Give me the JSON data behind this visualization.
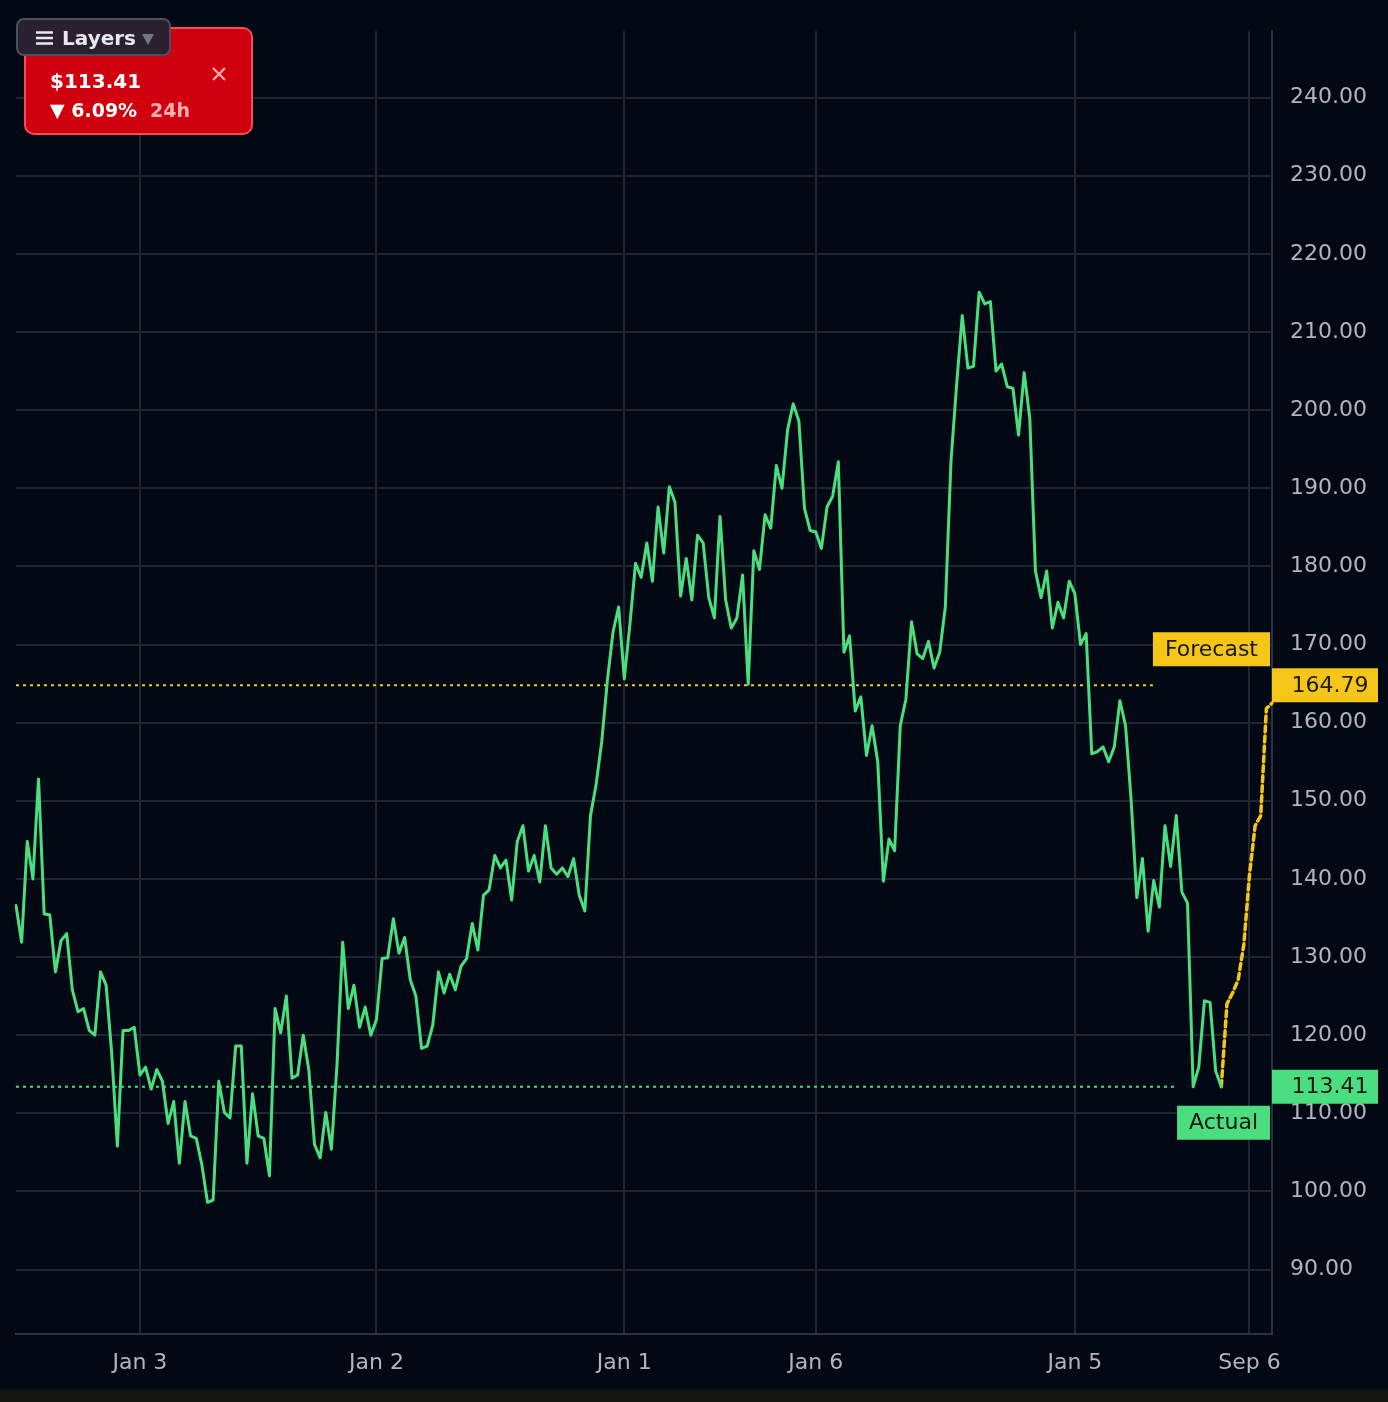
{
  "chart_data": {
    "type": "line",
    "ylim": [
      81.75,
      248.5
    ],
    "categories": [
      null,
      null,
      null,
      null,
      null,
      null,
      null,
      null,
      null,
      null,
      null,
      null,
      null,
      null,
      null,
      null,
      null,
      null,
      null,
      null,
      null,
      null,
      "Jan 3",
      null,
      null,
      null,
      null,
      null,
      null,
      null,
      null,
      null,
      null,
      null,
      null,
      null,
      null,
      null,
      null,
      null,
      null,
      null,
      null,
      null,
      null,
      null,
      null,
      null,
      null,
      null,
      null,
      null,
      null,
      null,
      null,
      null,
      null,
      null,
      null,
      null,
      null,
      null,
      null,
      null,
      "Jan 2",
      null,
      null,
      null,
      null,
      null,
      null,
      null,
      null,
      null,
      null,
      null,
      null,
      null,
      null,
      null,
      null,
      null,
      null,
      null,
      null,
      null,
      null,
      null,
      null,
      null,
      null,
      null,
      null,
      null,
      null,
      null,
      null,
      null,
      null,
      null,
      null,
      null,
      null,
      null,
      null,
      null,
      null,
      null,
      "Jan 1",
      null,
      null,
      null,
      null,
      null,
      null,
      null,
      null,
      null,
      null,
      null,
      null,
      null,
      null,
      null,
      null,
      null,
      null,
      null,
      null,
      null,
      null,
      null,
      null,
      null,
      null,
      null,
      null,
      null,
      null,
      null,
      null,
      null,
      "Jan 6",
      null,
      null,
      null,
      null,
      null,
      null,
      null,
      null,
      null,
      null,
      null,
      null,
      null,
      null,
      null,
      null,
      null,
      null,
      null,
      null,
      null,
      null,
      null,
      null,
      null,
      null,
      null,
      null,
      null,
      null,
      null,
      null,
      null,
      null,
      null,
      null,
      null,
      null,
      null,
      null,
      null,
      null,
      null,
      null,
      null,
      "Jan 5",
      null,
      null,
      null,
      null,
      null,
      null,
      null,
      null,
      null,
      null,
      null,
      null,
      null,
      null,
      null,
      null,
      null,
      null,
      null,
      null,
      null,
      null,
      null,
      null,
      null,
      null,
      null,
      null,
      null,
      null,
      "Sep 6",
      null,
      null,
      null,
      null
    ],
    "yticks": [
      {
        "value": 90,
        "label": "90.00"
      },
      {
        "value": 100,
        "label": "100.00"
      },
      {
        "value": 110,
        "label": "110.00"
      },
      {
        "value": 120,
        "label": "120.00"
      },
      {
        "value": 130,
        "label": "130.00"
      },
      {
        "value": 140,
        "label": "140.00"
      },
      {
        "value": 150,
        "label": "150.00"
      },
      {
        "value": 160,
        "label": "160.00"
      },
      {
        "value": 170,
        "label": "170.00"
      },
      {
        "value": 180,
        "label": "180.00"
      },
      {
        "value": 190,
        "label": "190.00"
      },
      {
        "value": 200,
        "label": "200.00"
      },
      {
        "value": 210,
        "label": "210.00"
      },
      {
        "value": 220,
        "label": "220.00"
      },
      {
        "value": 230,
        "label": "230.00"
      },
      {
        "value": 240,
        "label": "240.00"
      }
    ],
    "grid": true,
    "legend": false,
    "marker": "none",
    "series": [
      {
        "color": "#4ade80",
        "line_style": "solid",
        "values": [
          136.6,
          131.9,
          144.8,
          140,
          152.8,
          135.5,
          135.4,
          128.1,
          132.1,
          133,
          125.8,
          123,
          123.4,
          120.6,
          120,
          128.1,
          126.4,
          117.6,
          105.8,
          120.6,
          120.6,
          121,
          114.9,
          115.9,
          113.1,
          115.6,
          114.1,
          108.7,
          111.5,
          103.6,
          111.5,
          107.1,
          106.8,
          103.4,
          98.6,
          98.9,
          114.1,
          110.1,
          109.4,
          118.6,
          118.6,
          103.6,
          112.5,
          107.1,
          106.8,
          102,
          123.4,
          120.3,
          125,
          114.5,
          114.9,
          120,
          115.5,
          106,
          104.3,
          110.1,
          105.4,
          116.3,
          131.9,
          123.4,
          126.4,
          121,
          123.6,
          120,
          122,
          129.8,
          129.9,
          134.9,
          130.5,
          132.5,
          127.1,
          125,
          118.3,
          118.6,
          121.3,
          128.1,
          125.4,
          127.8,
          125.8,
          128.8,
          129.8,
          134.3,
          130.9,
          137.9,
          138.6,
          143,
          141.4,
          142.4,
          137.3,
          144.8,
          146.8,
          141,
          143,
          139.6,
          146.8,
          141.4,
          140.6,
          141.4,
          140.3,
          142.6,
          137.9,
          135.9,
          148.1,
          152.1,
          157.6,
          165.4,
          171.6,
          174.8,
          165.6,
          172.6,
          180.4,
          178.6,
          183,
          178.1,
          187.6,
          181.7,
          190.2,
          188.2,
          176.2,
          181,
          175.7,
          184,
          183,
          176,
          173.4,
          186.4,
          175.7,
          172.1,
          173.4,
          178.9,
          164.9,
          182,
          179.6,
          186.6,
          184.9,
          192.9,
          190,
          197.5,
          200.8,
          198.6,
          187.4,
          184.6,
          184.4,
          182.3,
          187.6,
          189,
          193.4,
          169,
          171.1,
          161.5,
          163.3,
          155.8,
          159.6,
          155,
          139.7,
          145.1,
          143.6,
          159.6,
          163,
          172.9,
          168.8,
          168.2,
          170.4,
          167,
          169,
          174.8,
          193.4,
          203.2,
          212.1,
          205.4,
          205.6,
          215.1,
          213.6,
          213.9,
          205,
          205.9,
          203,
          202.8,
          196.8,
          204.8,
          198.9,
          179.4,
          176,
          179.4,
          172.1,
          175.4,
          173.4,
          178.1,
          176.5,
          170,
          171.4,
          156,
          156.3,
          156.9,
          155,
          156.9,
          162.8,
          159.6,
          150,
          137.6,
          142.6,
          133.3,
          139.8,
          136.4,
          146.8,
          141.6,
          148.1,
          138.3,
          136.9,
          113.4,
          115.9,
          124.4,
          124.2,
          115.4,
          113.41,
          null,
          null,
          null,
          null,
          null,
          null,
          null,
          null,
          null
        ]
      },
      {
        "color": "#f5c518",
        "line_style": "dashed",
        "values": [
          null,
          null,
          null,
          null,
          null,
          null,
          null,
          null,
          null,
          null,
          null,
          null,
          null,
          null,
          null,
          null,
          null,
          null,
          null,
          null,
          null,
          null,
          null,
          null,
          null,
          null,
          null,
          null,
          null,
          null,
          null,
          null,
          null,
          null,
          null,
          null,
          null,
          null,
          null,
          null,
          null,
          null,
          null,
          null,
          null,
          null,
          null,
          null,
          null,
          null,
          null,
          null,
          null,
          null,
          null,
          null,
          null,
          null,
          null,
          null,
          null,
          null,
          null,
          null,
          null,
          null,
          null,
          null,
          null,
          null,
          null,
          null,
          null,
          null,
          null,
          null,
          null,
          null,
          null,
          null,
          null,
          null,
          null,
          null,
          null,
          null,
          null,
          null,
          null,
          null,
          null,
          null,
          null,
          null,
          null,
          null,
          null,
          null,
          null,
          null,
          null,
          null,
          null,
          null,
          null,
          null,
          null,
          null,
          null,
          null,
          null,
          null,
          null,
          null,
          null,
          null,
          null,
          null,
          null,
          null,
          null,
          null,
          null,
          null,
          null,
          null,
          null,
          null,
          null,
          null,
          null,
          null,
          null,
          null,
          null,
          null,
          null,
          null,
          null,
          null,
          null,
          null,
          null,
          null,
          null,
          null,
          null,
          null,
          null,
          null,
          null,
          null,
          null,
          null,
          null,
          null,
          null,
          null,
          null,
          null,
          null,
          null,
          null,
          null,
          null,
          null,
          null,
          null,
          null,
          null,
          null,
          null,
          null,
          null,
          null,
          null,
          null,
          null,
          null,
          null,
          null,
          null,
          null,
          null,
          null,
          null,
          null,
          null,
          null,
          null,
          null,
          null,
          null,
          null,
          null,
          null,
          null,
          null,
          null,
          null,
          null,
          null,
          null,
          null,
          null,
          null,
          null,
          null,
          null,
          null,
          null,
          null,
          null,
          null,
          113.41,
          124,
          125.4,
          127.1,
          131.6,
          140.5,
          146.8,
          148.1,
          161.8,
          162.5
        ]
      }
    ],
    "ref_lines": [
      {
        "axis": "y",
        "value": 164.79,
        "label": "Forecast",
        "color": "#f5c518",
        "line_style": "dotted"
      },
      {
        "axis": "y",
        "value": 113.41,
        "label": "Actual",
        "color": "#4ade80",
        "line_style": "dotted"
      }
    ],
    "annotations": [
      "$113.41",
      "▼ 6.09%",
      "24h",
      "Layers",
      "164.79",
      "113.41"
    ]
  }
}
